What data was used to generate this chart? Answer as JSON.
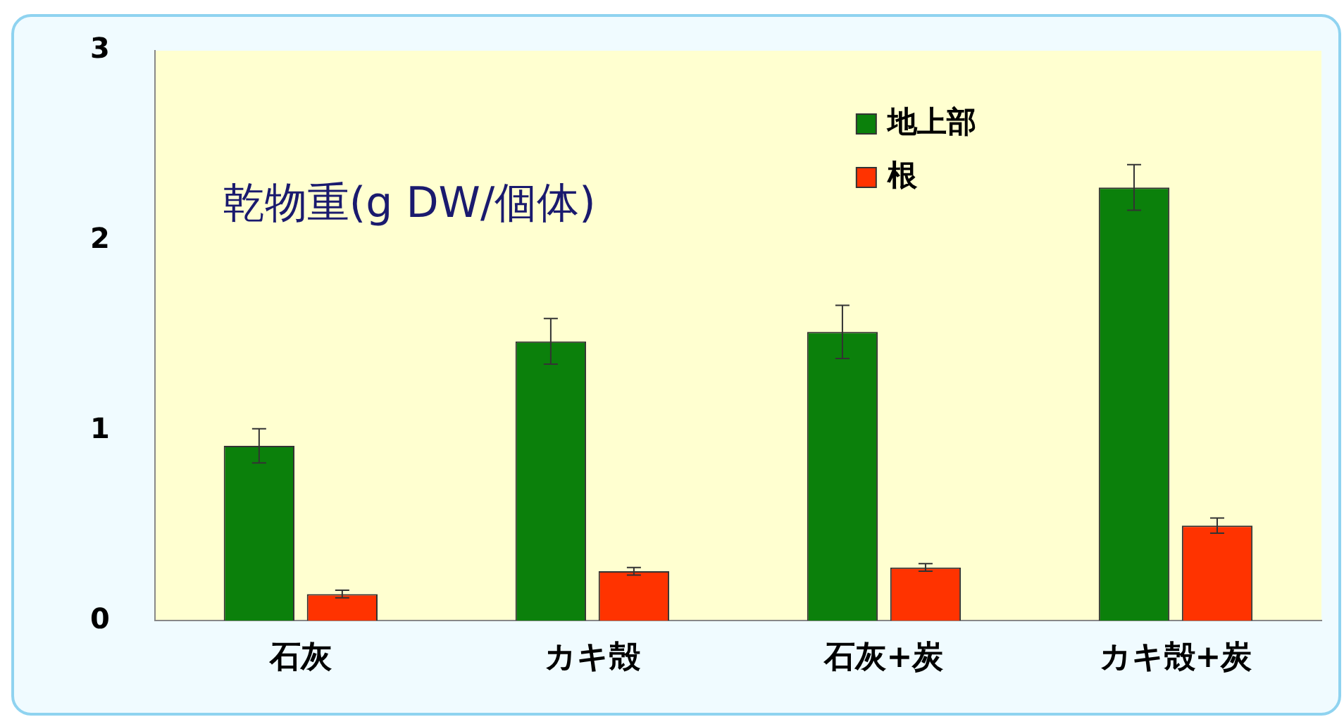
{
  "chart_data": {
    "type": "bar",
    "title": "乾物重(g DW/個体)",
    "categories": [
      "石灰",
      "カキ殻",
      "石灰+炭",
      "カキ殻+炭"
    ],
    "series": [
      {
        "name": "地上部",
        "color": "#0b800b",
        "values": [
          0.92,
          1.47,
          1.52,
          2.28
        ],
        "errors": [
          0.09,
          0.12,
          0.14,
          0.12
        ]
      },
      {
        "name": "根",
        "color": "#ff3300",
        "values": [
          0.14,
          0.26,
          0.28,
          0.5
        ],
        "errors": [
          0.02,
          0.02,
          0.02,
          0.04
        ]
      }
    ],
    "ylim": [
      0,
      3
    ],
    "yticks": [
      0,
      1,
      2,
      3
    ],
    "grid": false,
    "legend": "top right"
  }
}
